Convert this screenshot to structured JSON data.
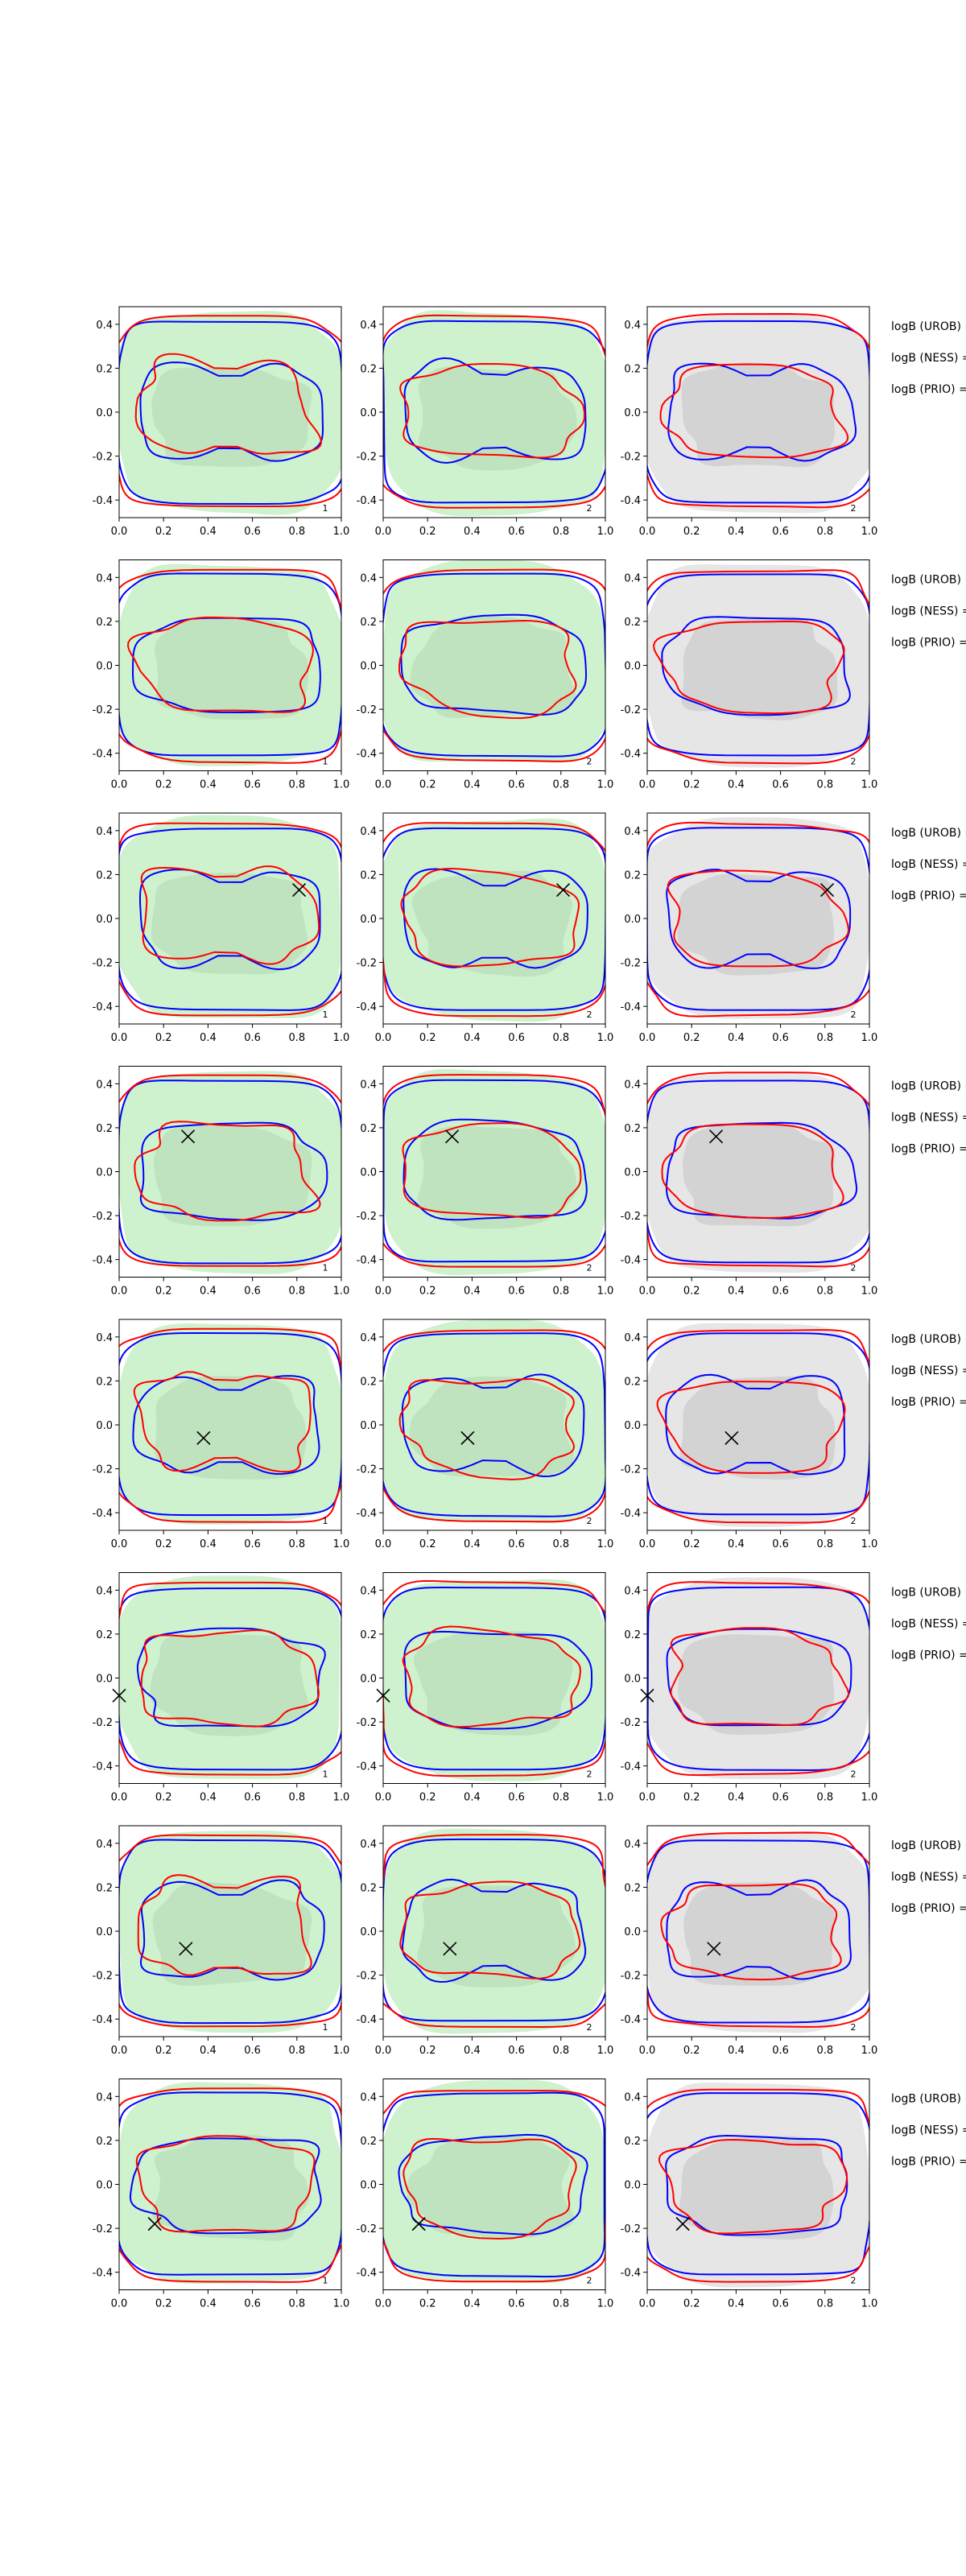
{
  "figure": {
    "rows": 8,
    "cols": 3,
    "xlim": [
      0.0,
      1.0
    ],
    "ylim": [
      -0.48,
      0.48
    ],
    "xticks": [
      "0.0",
      "0.2",
      "0.4",
      "0.6",
      "0.8",
      "1.0"
    ],
    "yticks": [
      "-0.4",
      "-0.2",
      "0.0",
      "0.2",
      "0.4"
    ],
    "colors": {
      "fill_green": "#cdf2cd",
      "fill_green_dark": "#bfe3bf",
      "fill_grey": "#e6e6e6",
      "fill_grey_dark": "#d3d3d3",
      "blue": "#0000ff",
      "red": "#ff0000",
      "marker": "#000000"
    },
    "side_labels": [
      "logB (UROB) =",
      "logB (NESS) =",
      "logB (PRIO) ="
    ]
  },
  "chart_data": [
    {
      "row": 1,
      "type": "contour",
      "marker": null,
      "panel_labels": [
        "1",
        "2",
        "2"
      ]
    },
    {
      "row": 2,
      "type": "contour",
      "marker": null,
      "panel_labels": [
        "1",
        "2",
        "2"
      ]
    },
    {
      "row": 3,
      "type": "contour",
      "marker": {
        "x": 0.81,
        "y": 0.13
      },
      "panel_labels": [
        "1",
        "2",
        "2"
      ]
    },
    {
      "row": 4,
      "type": "contour",
      "marker": {
        "x": 0.31,
        "y": 0.16
      },
      "panel_labels": [
        "1",
        "2",
        "2"
      ]
    },
    {
      "row": 5,
      "type": "contour",
      "marker": {
        "x": 0.38,
        "y": -0.06
      },
      "panel_labels": [
        "1",
        "2",
        "2"
      ]
    },
    {
      "row": 6,
      "type": "contour",
      "marker": {
        "x": 0.0,
        "y": -0.08
      },
      "panel_labels": [
        "1",
        "2",
        "2"
      ]
    },
    {
      "row": 7,
      "type": "contour",
      "marker": {
        "x": 0.3,
        "y": -0.08
      },
      "panel_labels": [
        "1",
        "2",
        "2"
      ]
    },
    {
      "row": 8,
      "type": "contour",
      "marker": {
        "x": 0.16,
        "y": -0.18
      },
      "panel_labels": [
        "1",
        "2",
        "2"
      ]
    }
  ]
}
